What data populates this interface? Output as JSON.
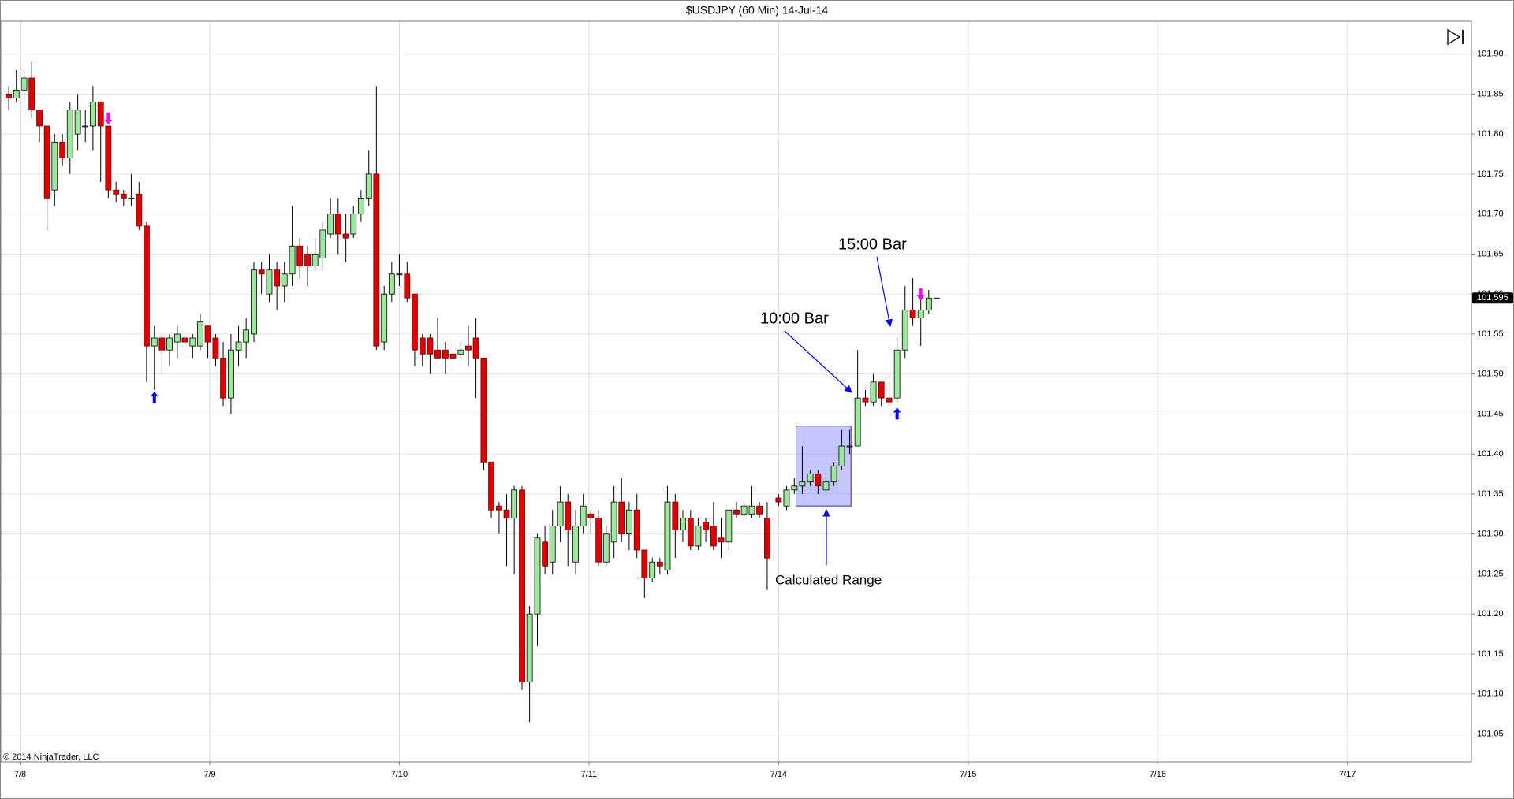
{
  "chart_data": {
    "type": "candlestick",
    "title": "$USDJPY (60 Min)  14-Jul-14",
    "copyright": "© 2014 NinjaTrader, LLC",
    "up_color": "#9ee89e",
    "down_color": "#e00000",
    "x": [
      -0.06,
      -0.02,
      0.021,
      0.061,
      0.102,
      0.142,
      0.182,
      0.223,
      0.263,
      0.304,
      0.344,
      0.384,
      0.425,
      0.465,
      0.506,
      0.546,
      0.586,
      0.627,
      0.667,
      0.708,
      0.748,
      0.788,
      0.829,
      0.869,
      0.91,
      0.95,
      0.99,
      1.031,
      1.071,
      1.112,
      1.152,
      1.192,
      1.233,
      1.273,
      1.314,
      1.354,
      1.394,
      1.435,
      1.475,
      1.516,
      1.556,
      1.596,
      1.637,
      1.677,
      1.718,
      1.758,
      1.798,
      1.839,
      1.879,
      1.92,
      1.96,
      2.0,
      2.041,
      2.081,
      2.122,
      2.162,
      2.202,
      2.243,
      2.283,
      2.324,
      2.364,
      2.404,
      2.445,
      2.485,
      2.526,
      2.566,
      2.606,
      2.647,
      2.687,
      2.728,
      2.768,
      2.808,
      2.849,
      2.889,
      2.93,
      2.97,
      3.01,
      3.051,
      3.091,
      3.132,
      3.172,
      3.212,
      3.253,
      3.293,
      3.334,
      3.374,
      3.414,
      3.455,
      3.495,
      3.536,
      3.576,
      3.616,
      3.657,
      3.697,
      3.738,
      3.778,
      3.818,
      3.859,
      3.899,
      3.94,
      4.0,
      4.042,
      4.083,
      4.125,
      4.167,
      4.208,
      4.25,
      4.292,
      4.333,
      4.375,
      4.417,
      4.458,
      4.5,
      4.542,
      4.583,
      4.625,
      4.667,
      4.708,
      4.75,
      4.792,
      4.833
    ],
    "open": [
      101.85,
      101.845,
      101.855,
      101.87,
      101.83,
      101.81,
      101.73,
      101.79,
      101.77,
      101.8,
      101.81,
      101.81,
      101.84,
      101.81,
      101.73,
      101.725,
      101.72,
      101.725,
      101.685,
      101.535,
      101.545,
      101.53,
      101.54,
      101.545,
      101.535,
      101.535,
      101.56,
      101.545,
      101.52,
      101.47,
      101.53,
      101.54,
      101.55,
      101.63,
      101.6,
      101.63,
      101.61,
      101.625,
      101.66,
      101.65,
      101.635,
      101.645,
      101.675,
      101.7,
      101.675,
      101.675,
      101.7,
      101.72,
      101.75,
      101.54,
      101.6,
      101.625,
      101.625,
      101.6,
      101.545,
      101.545,
      101.53,
      101.53,
      101.525,
      101.525,
      101.535,
      101.545,
      101.52,
      101.39,
      101.335,
      101.33,
      101.32,
      101.355,
      101.115,
      101.2,
      101.29,
      101.265,
      101.31,
      101.34,
      101.265,
      101.31,
      101.325,
      101.32,
      101.265,
      101.29,
      101.34,
      101.3,
      101.33,
      101.28,
      101.245,
      101.265,
      101.255,
      101.34,
      101.305,
      101.32,
      101.285,
      101.315,
      101.31,
      101.295,
      101.29,
      101.33,
      101.325,
      101.325,
      101.335,
      101.32,
      101.345,
      101.335,
      101.355,
      101.36,
      101.365,
      101.375,
      101.355,
      101.365,
      101.385,
      101.41,
      101.41,
      101.47,
      101.465,
      101.49,
      101.47,
      101.47,
      101.53,
      101.58,
      101.57,
      101.58,
      101.595
    ],
    "high": [
      101.86,
      101.88,
      101.88,
      101.89,
      101.83,
      101.81,
      101.8,
      101.8,
      101.84,
      101.85,
      101.83,
      101.86,
      101.84,
      101.81,
      101.74,
      101.73,
      101.75,
      101.74,
      101.69,
      101.56,
      101.55,
      101.55,
      101.56,
      101.55,
      101.55,
      101.575,
      101.56,
      101.55,
      101.54,
      101.55,
      101.56,
      101.57,
      101.64,
      101.64,
      101.65,
      101.64,
      101.64,
      101.71,
      101.67,
      101.66,
      101.67,
      101.69,
      101.72,
      101.72,
      101.7,
      101.71,
      101.73,
      101.78,
      101.86,
      101.61,
      101.64,
      101.65,
      101.64,
      101.6,
      101.55,
      101.55,
      101.57,
      101.54,
      101.535,
      101.54,
      101.56,
      101.57,
      101.52,
      101.39,
      101.34,
      101.35,
      101.36,
      101.36,
      101.21,
      101.3,
      101.31,
      101.33,
      101.36,
      101.35,
      101.33,
      101.35,
      101.33,
      101.33,
      101.31,
      101.36,
      101.37,
      101.34,
      101.35,
      101.28,
      101.27,
      101.27,
      101.36,
      101.35,
      101.33,
      101.33,
      101.32,
      101.32,
      101.34,
      101.32,
      101.33,
      101.34,
      101.34,
      101.36,
      101.34,
      101.34,
      101.35,
      101.36,
      101.37,
      101.41,
      101.38,
      101.38,
      101.37,
      101.39,
      101.43,
      101.43,
      101.53,
      101.48,
      101.5,
      101.49,
      101.5,
      101.545,
      101.61,
      101.62,
      101.595,
      101.605,
      101.595
    ],
    "low": [
      101.83,
      101.84,
      101.84,
      101.82,
      101.79,
      101.68,
      101.71,
      101.76,
      101.75,
      101.78,
      101.79,
      101.78,
      101.74,
      101.72,
      101.715,
      101.71,
      101.71,
      101.68,
      101.49,
      101.48,
      101.5,
      101.51,
      101.52,
      101.52,
      101.52,
      101.53,
      101.52,
      101.51,
      101.46,
      101.45,
      101.51,
      101.52,
      101.54,
      101.6,
      101.59,
      101.58,
      101.59,
      101.61,
      101.62,
      101.61,
      101.63,
      101.63,
      101.67,
      101.65,
      101.64,
      101.67,
      101.69,
      101.71,
      101.53,
      101.53,
      101.59,
      101.61,
      101.59,
      101.51,
      101.51,
      101.5,
      101.52,
      101.5,
      101.51,
      101.52,
      101.51,
      101.47,
      101.38,
      101.32,
      101.3,
      101.26,
      101.25,
      101.105,
      101.065,
      101.16,
      101.25,
      101.25,
      101.29,
      101.26,
      101.25,
      101.3,
      101.3,
      101.26,
      101.26,
      101.27,
      101.29,
      101.28,
      101.27,
      101.22,
      101.24,
      101.25,
      101.25,
      101.27,
      101.29,
      101.28,
      101.28,
      101.29,
      101.28,
      101.27,
      101.28,
      101.32,
      101.32,
      101.32,
      101.32,
      101.23,
      101.335,
      101.33,
      101.35,
      101.35,
      101.36,
      101.35,
      101.345,
      101.36,
      101.38,
      101.4,
      101.41,
      101.46,
      101.46,
      101.46,
      101.46,
      101.465,
      101.52,
      101.56,
      101.535,
      101.575,
      101.595
    ],
    "close": [
      101.845,
      101.855,
      101.87,
      101.83,
      101.81,
      101.72,
      101.79,
      101.77,
      101.83,
      101.83,
      101.81,
      101.84,
      101.81,
      101.73,
      101.725,
      101.72,
      101.72,
      101.685,
      101.535,
      101.545,
      101.53,
      101.545,
      101.55,
      101.54,
      101.545,
      101.565,
      101.54,
      101.52,
      101.47,
      101.53,
      101.54,
      101.555,
      101.63,
      101.625,
      101.63,
      101.61,
      101.625,
      101.66,
      101.635,
      101.635,
      101.65,
      101.68,
      101.7,
      101.675,
      101.67,
      101.7,
      101.72,
      101.75,
      101.535,
      101.6,
      101.625,
      101.625,
      101.595,
      101.53,
      101.525,
      101.525,
      101.52,
      101.52,
      101.52,
      101.53,
      101.53,
      101.52,
      101.39,
      101.33,
      101.33,
      101.32,
      101.355,
      101.115,
      101.2,
      101.295,
      101.26,
      101.31,
      101.34,
      101.305,
      101.31,
      101.335,
      101.32,
      101.265,
      101.3,
      101.34,
      101.3,
      101.33,
      101.28,
      101.245,
      101.265,
      101.26,
      101.34,
      101.305,
      101.32,
      101.285,
      101.31,
      101.305,
      101.285,
      101.29,
      101.33,
      101.325,
      101.335,
      101.335,
      101.325,
      101.27,
      101.34,
      101.355,
      101.36,
      101.365,
      101.375,
      101.36,
      101.365,
      101.385,
      101.41,
      101.41,
      101.47,
      101.465,
      101.49,
      101.47,
      101.465,
      101.53,
      101.58,
      101.57,
      101.58,
      101.595,
      101.595
    ],
    "last_price": 101.595,
    "range_box": {
      "x": [
        4.092,
        4.382
      ],
      "y": [
        101.335,
        101.435
      ],
      "color": "#8080ff"
    },
    "signals": [
      {
        "direction": "up",
        "color": "#0000ff",
        "x": [
          0.708,
          4.625
        ],
        "y": [
          101.47,
          101.45
        ]
      },
      {
        "direction": "down",
        "color": "#ff00ff",
        "x": [
          0.465,
          4.75
        ],
        "y": [
          101.82,
          101.6
        ]
      }
    ],
    "annotations": [
      "15:00 Bar",
      "10:00 Bar",
      "Calculated Range"
    ],
    "xlim": [
      -0.102,
      7.654
    ],
    "xticks": [
      {
        "value": 0,
        "label": "7/8"
      },
      {
        "value": 1,
        "label": "7/9"
      },
      {
        "value": 2,
        "label": "7/10"
      },
      {
        "value": 3,
        "label": "7/11"
      },
      {
        "value": 4,
        "label": "7/14"
      },
      {
        "value": 5,
        "label": "7/15"
      },
      {
        "value": 6,
        "label": "7/16"
      },
      {
        "value": 7,
        "label": "7/17"
      }
    ],
    "ylim": [
      101.015,
      101.941
    ],
    "yticks": [
      101.05,
      {
        "value": 101.1,
        "label": "101.10"
      },
      101.15,
      {
        "value": 101.2,
        "label": "101.20"
      },
      101.25,
      {
        "value": 101.3,
        "label": "101.30"
      },
      101.35,
      {
        "value": 101.4,
        "label": "101.40"
      },
      101.45,
      {
        "value": 101.5,
        "label": "101.50"
      },
      101.55,
      {
        "value": 101.6,
        "label": "101.60"
      },
      101.65,
      {
        "value": 101.7,
        "label": "101.70"
      },
      101.75,
      {
        "value": 101.8,
        "label": "101.80"
      },
      101.85,
      {
        "value": 101.9,
        "label": "101.90"
      }
    ],
    "grid": true
  }
}
